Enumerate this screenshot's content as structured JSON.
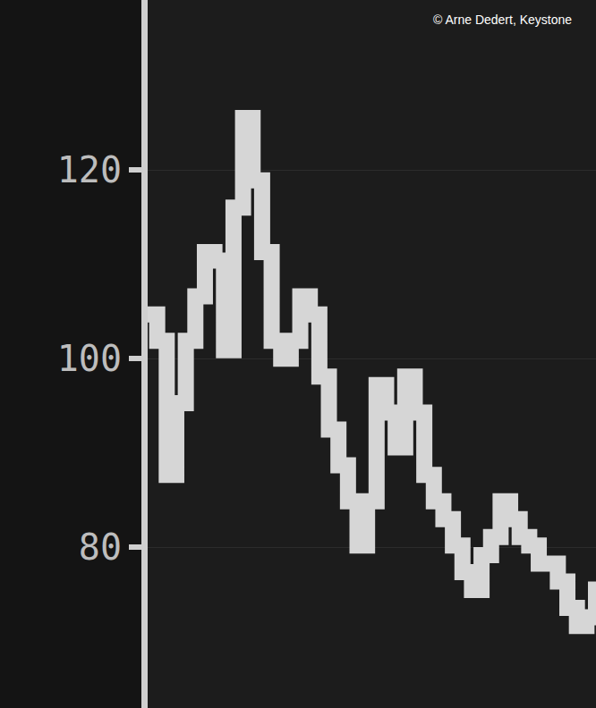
{
  "chart_data": {
    "type": "line",
    "credit": "© Arne Dedert, Keystone",
    "categories": [
      null,
      null,
      null,
      null,
      null,
      null,
      null,
      null,
      null,
      null,
      null,
      null,
      null,
      null,
      null,
      null,
      null,
      null,
      null,
      null,
      null,
      null,
      null,
      null,
      null,
      null,
      null,
      null,
      null,
      null,
      null,
      null,
      null,
      null,
      null,
      null,
      null,
      null,
      null,
      null,
      null,
      null,
      null,
      null,
      null,
      null,
      null,
      null
    ],
    "values": [
      104.7,
      101.9,
      87.7,
      95.3,
      101.9,
      106.6,
      111.3,
      110.4,
      100.9,
      116.0,
      125.5,
      118.9,
      111.3,
      101.9,
      100.0,
      101.9,
      106.6,
      104.7,
      98.1,
      92.5,
      88.7,
      84.9,
      80.2,
      84.9,
      97.2,
      94.3,
      90.6,
      98.1,
      94.3,
      87.7,
      84.9,
      83.0,
      80.2,
      77.4,
      75.5,
      79.2,
      81.1,
      84.9,
      83.0,
      81.1,
      80.2,
      78.3,
      78.3,
      76.4,
      73.6,
      71.7,
      72.6,
      76.4
    ],
    "color": "#d6d6d6",
    "ylim": [
      63,
      138
    ],
    "yticks": [
      80,
      100,
      120
    ],
    "grid": true,
    "tick_labels": "y",
    "line_style": "solid"
  }
}
